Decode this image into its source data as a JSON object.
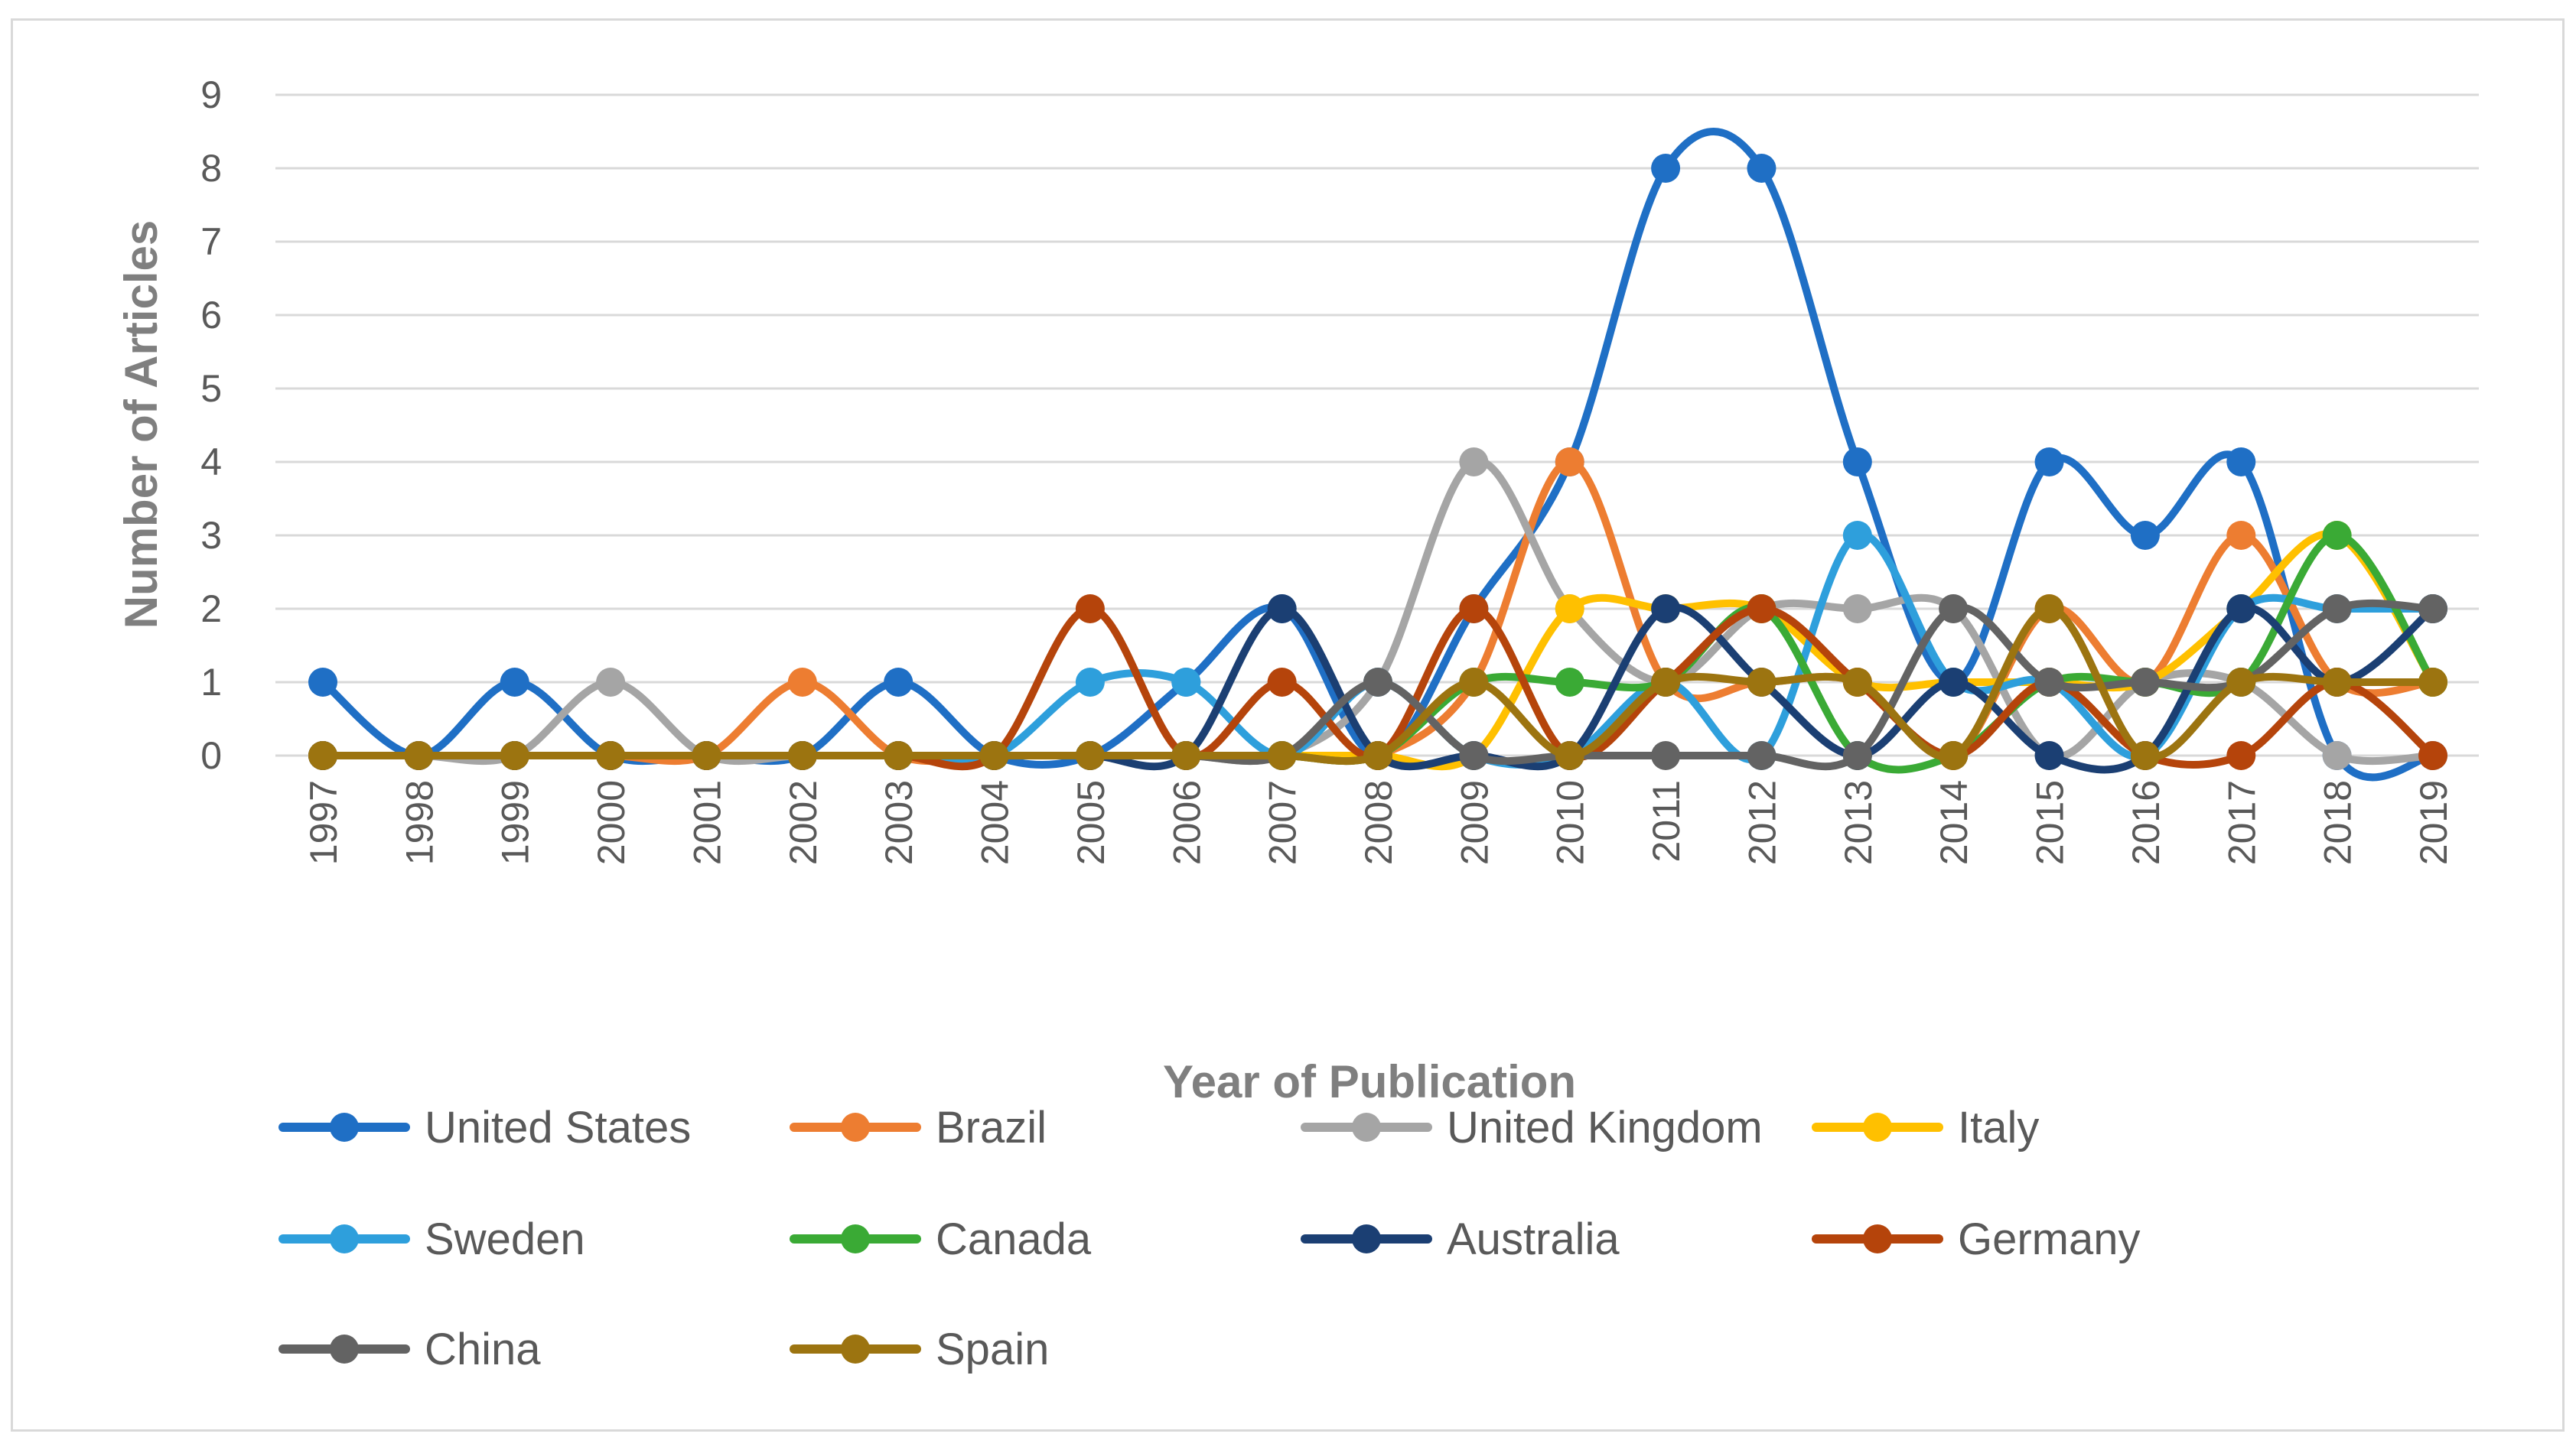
{
  "chart_data": {
    "type": "line",
    "title": "",
    "xlabel": "Year of Publication",
    "ylabel": "Number of Articles",
    "ylim": [
      0,
      9
    ],
    "yticks": [
      "0",
      "1",
      "2",
      "3",
      "4",
      "5",
      "6",
      "7",
      "8",
      "9"
    ],
    "grid": true,
    "smooth": true,
    "legend_position": "bottom",
    "categories": [
      "1997",
      "1998",
      "1999",
      "2000",
      "2001",
      "2002",
      "2003",
      "2004",
      "2005",
      "2006",
      "2007",
      "2008",
      "2009",
      "2010",
      "2011",
      "2012",
      "2013",
      "2014",
      "2015",
      "2016",
      "2017",
      "2018",
      "2019"
    ],
    "series": [
      {
        "name": "United States",
        "color": "#1f6fc5",
        "values": [
          1,
          0,
          1,
          0,
          0,
          0,
          1,
          0,
          0,
          1,
          2,
          0,
          2,
          4,
          8,
          8,
          4,
          1,
          4,
          3,
          4,
          0,
          0
        ]
      },
      {
        "name": "Brazil",
        "color": "#ed7d31",
        "values": [
          0,
          0,
          0,
          0,
          0,
          1,
          0,
          0,
          0,
          0,
          0,
          0,
          1,
          4,
          1,
          1,
          1,
          0,
          2,
          1,
          3,
          1,
          1
        ]
      },
      {
        "name": "United Kingdom",
        "color": "#a5a5a5",
        "values": [
          0,
          0,
          0,
          1,
          0,
          0,
          0,
          0,
          0,
          0,
          0,
          1,
          4,
          2,
          1,
          2,
          2,
          2,
          0,
          1,
          1,
          0,
          0
        ]
      },
      {
        "name": "Italy",
        "color": "#ffc000",
        "values": [
          0,
          0,
          0,
          0,
          0,
          0,
          0,
          0,
          0,
          0,
          0,
          0,
          0,
          2,
          2,
          2,
          1,
          1,
          1,
          1,
          2,
          3,
          1
        ]
      },
      {
        "name": "Sweden",
        "color": "#2e9fdc",
        "values": [
          0,
          0,
          0,
          0,
          0,
          0,
          0,
          0,
          1,
          1,
          0,
          1,
          0,
          0,
          1,
          0,
          3,
          1,
          1,
          0,
          2,
          2,
          2
        ]
      },
      {
        "name": "Canada",
        "color": "#3aaa35",
        "values": [
          0,
          0,
          0,
          0,
          0,
          0,
          0,
          0,
          0,
          0,
          0,
          0,
          1,
          1,
          1,
          2,
          0,
          0,
          1,
          1,
          1,
          3,
          1
        ]
      },
      {
        "name": "Australia",
        "color": "#1b3f73",
        "values": [
          0,
          0,
          0,
          0,
          0,
          0,
          0,
          0,
          0,
          0,
          2,
          0,
          0,
          0,
          2,
          1,
          0,
          1,
          0,
          0,
          2,
          1,
          2
        ]
      },
      {
        "name": "Germany",
        "color": "#b5440b",
        "values": [
          0,
          0,
          0,
          0,
          0,
          0,
          0,
          0,
          2,
          0,
          1,
          0,
          2,
          0,
          1,
          2,
          1,
          0,
          1,
          0,
          0,
          1,
          0
        ]
      },
      {
        "name": "China",
        "color": "#636363",
        "values": [
          0,
          0,
          0,
          0,
          0,
          0,
          0,
          0,
          0,
          0,
          0,
          1,
          0,
          0,
          0,
          0,
          0,
          2,
          1,
          1,
          1,
          2,
          2
        ]
      },
      {
        "name": "Spain",
        "color": "#9c7410",
        "values": [
          0,
          0,
          0,
          0,
          0,
          0,
          0,
          0,
          0,
          0,
          0,
          0,
          1,
          0,
          1,
          1,
          1,
          0,
          2,
          0,
          1,
          1,
          1
        ]
      }
    ]
  }
}
